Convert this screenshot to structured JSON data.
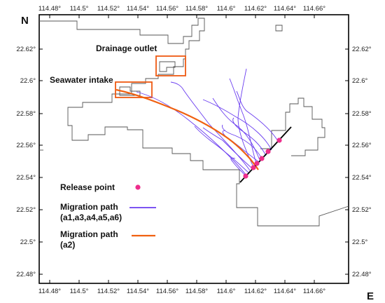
{
  "map": {
    "north_label": "N",
    "east_label": "E",
    "lon_ticks": [
      "114.48°",
      "114.5°",
      "114.52°",
      "114.54°",
      "114.56°",
      "114.58°",
      "114.6°",
      "114.62°",
      "114.64°",
      "114.66°"
    ],
    "lat_ticks": [
      "22.62°",
      "22.6°",
      "22.58°",
      "22.56°",
      "22.54°",
      "22.52°",
      "22.5°",
      "22.48°"
    ],
    "labels": {
      "drainage_outlet": "Drainage outlet",
      "seawater_intake": "Seawater intake"
    },
    "legend": {
      "release_point": "Release point",
      "migration_blue_line1": "Migration path",
      "migration_blue_line2": "(a1,a3,a4,a5,a6)",
      "migration_orange_line1": "Migration path",
      "migration_orange_line2": "(a2)"
    },
    "colors": {
      "coastline": "#555555",
      "boxes": "#ee5a12",
      "blue_path": "#6a3cf0",
      "orange_path": "#f06010",
      "release_point": "#ee2d8c",
      "release_line": "#000000"
    },
    "release_point_count": 6
  }
}
